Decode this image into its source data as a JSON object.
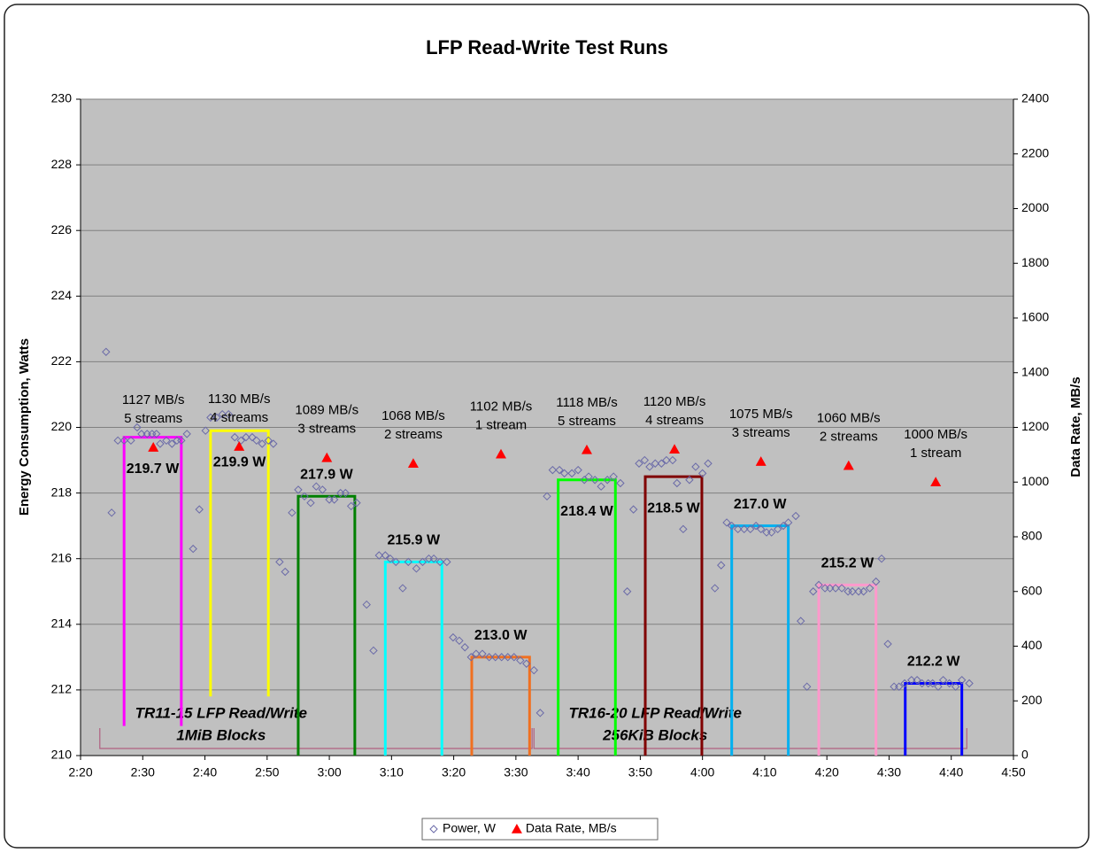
{
  "chart_data": {
    "type": "scatter",
    "title": "LFP Read-Write Test Runs",
    "y_label": "Energy Consumption, Watts",
    "y2_label": "Data Rate, MB/s",
    "xlim": [
      140,
      290
    ],
    "xticks": [
      {
        "value": 140,
        "label": "2:20"
      },
      {
        "value": 150,
        "label": "2:30"
      },
      {
        "value": 160,
        "label": "2:40"
      },
      {
        "value": 170,
        "label": "2:50"
      },
      {
        "value": 180,
        "label": "3:00"
      },
      {
        "value": 190,
        "label": "3:10"
      },
      {
        "value": 200,
        "label": "3:20"
      },
      {
        "value": 210,
        "label": "3:30"
      },
      {
        "value": 220,
        "label": "3:40"
      },
      {
        "value": 230,
        "label": "3:50"
      },
      {
        "value": 240,
        "label": "4:00"
      },
      {
        "value": 250,
        "label": "4:10"
      },
      {
        "value": 260,
        "label": "4:20"
      },
      {
        "value": 270,
        "label": "4:30"
      },
      {
        "value": 280,
        "label": "4:40"
      },
      {
        "value": 290,
        "label": "4:50"
      }
    ],
    "ylim": [
      210,
      230
    ],
    "yticks": [
      210,
      212,
      214,
      216,
      218,
      220,
      222,
      224,
      226,
      228,
      230
    ],
    "y2lim": [
      0,
      2400
    ],
    "y2ticks": [
      0,
      200,
      400,
      600,
      800,
      1000,
      1200,
      1400,
      1600,
      1800,
      2000,
      2200,
      2400
    ],
    "grid": true,
    "legend": "bottom",
    "series": [
      {
        "name": "Power, W",
        "color": "#6a6aa8",
        "marker": "diamond",
        "x": [
          144.1,
          145.0,
          146.0,
          147.0,
          148.1,
          149.1,
          149.8,
          150.7,
          151.5,
          152.2,
          152.8,
          153.8,
          154.7,
          155.5,
          156.2,
          157.1,
          158.1,
          159.1,
          160.1,
          160.9,
          161.9,
          162.8,
          163.8,
          164.8,
          165.8,
          166.6,
          167.6,
          168.3,
          169.2,
          170.2,
          171.0,
          172.0,
          172.9,
          174.0,
          175.0,
          176.0,
          177.0,
          177.9,
          178.9,
          180.0,
          180.8,
          181.8,
          182.6,
          183.5,
          184.4,
          186.0,
          187.1,
          188.0,
          189.0,
          189.8,
          190.7,
          191.8,
          192.7,
          194.0,
          195.0,
          196.0,
          196.8,
          197.8,
          198.9,
          199.9,
          200.9,
          201.8,
          202.8,
          203.6,
          204.6,
          205.7,
          206.7,
          207.7,
          208.7,
          209.7,
          210.7,
          211.7,
          212.9,
          213.9,
          215.0,
          215.9,
          217.0,
          217.8,
          219.0,
          220.0,
          221.0,
          221.7,
          222.7,
          223.7,
          224.7,
          225.7,
          226.8,
          227.9,
          228.9,
          229.8,
          230.7,
          231.5,
          232.4,
          233.4,
          234.2,
          235.2,
          235.9,
          236.9,
          237.9,
          238.9,
          240.0,
          240.9,
          242.0,
          243.0,
          243.9,
          244.7,
          245.7,
          246.7,
          247.7,
          248.6,
          249.4,
          250.3,
          251.1,
          252.1,
          253.0,
          253.8,
          255.0,
          255.8,
          256.8,
          257.8,
          258.7,
          259.7,
          260.5,
          261.4,
          262.4,
          263.4,
          264.1,
          265.1,
          265.9,
          266.9,
          267.9,
          268.8,
          269.8,
          270.8,
          271.6,
          272.5,
          273.6,
          274.5,
          275.3,
          276.3,
          277.0,
          277.9,
          278.7,
          279.7,
          280.7,
          281.7,
          282.9
        ],
        "values": [
          222.3,
          217.4,
          219.6,
          219.6,
          219.6,
          220.0,
          219.8,
          219.8,
          219.8,
          219.8,
          219.5,
          219.6,
          219.5,
          219.6,
          219.6,
          219.8,
          216.3,
          217.5,
          219.9,
          220.3,
          220.3,
          220.4,
          220.4,
          219.7,
          219.6,
          219.7,
          219.7,
          219.6,
          219.5,
          219.6,
          219.5,
          215.9,
          215.6,
          217.4,
          218.1,
          217.9,
          217.7,
          218.2,
          218.1,
          217.8,
          217.8,
          218.0,
          218.0,
          217.6,
          217.7,
          214.6,
          213.2,
          216.1,
          216.1,
          216.0,
          215.9,
          215.1,
          215.9,
          215.7,
          215.9,
          216.0,
          216.0,
          215.9,
          215.9,
          213.6,
          213.5,
          213.3,
          213.0,
          213.1,
          213.1,
          213.0,
          213.0,
          213.0,
          213.0,
          213.0,
          212.9,
          212.8,
          212.6,
          211.3,
          217.9,
          218.7,
          218.7,
          218.6,
          218.6,
          218.7,
          218.4,
          218.5,
          218.4,
          218.2,
          218.4,
          218.5,
          218.3,
          215.0,
          217.5,
          218.9,
          219.0,
          218.8,
          218.9,
          218.9,
          219.0,
          219.0,
          218.3,
          216.9,
          218.4,
          218.8,
          218.6,
          218.9,
          215.1,
          215.8,
          217.1,
          217.0,
          216.9,
          216.9,
          216.9,
          217.0,
          216.9,
          216.8,
          216.8,
          216.9,
          217.0,
          217.1,
          217.3,
          214.1,
          212.1,
          215.0,
          215.2,
          215.1,
          215.1,
          215.1,
          215.1,
          215.0,
          215.0,
          215.0,
          215.0,
          215.1,
          215.3,
          216.0,
          213.4,
          212.1,
          212.1,
          212.2,
          212.3,
          212.3,
          212.2,
          212.2,
          212.2,
          212.1,
          212.3,
          212.2,
          212.1,
          212.3,
          212.2
        ]
      },
      {
        "name": "Data Rate, MB/s",
        "color": "#ff0000",
        "marker": "triangle",
        "axis": "y2",
        "x": [
          151.7,
          165.5,
          179.6,
          193.5,
          207.6,
          221.4,
          235.5,
          249.4,
          263.5,
          277.5
        ],
        "values": [
          1127,
          1130,
          1089,
          1068,
          1102,
          1118,
          1120,
          1075,
          1060,
          1000
        ],
        "value_labels": [
          "1127 MB/s",
          "1130 MB/s",
          "1089 MB/s",
          "1068 MB/s",
          "1102 MB/s",
          "1118 MB/s",
          "1120 MB/s",
          "1075 MB/s",
          "1060 MB/s",
          "1000 MB/s"
        ],
        "notes": [
          "5 streams",
          "4 streams",
          "3 streams",
          "2 streams",
          "1 stream",
          "5 streams",
          "4 streams",
          "3 streams",
          "2 streams",
          "1 stream"
        ]
      }
    ],
    "runs": [
      {
        "label": "219.7 W",
        "value": 219.7,
        "start": 147.0,
        "end": 156.2,
        "bottom": 210.9,
        "color": "#ff00ff",
        "label_pos": "below"
      },
      {
        "label": "219.9 W",
        "value": 219.9,
        "start": 160.9,
        "end": 170.2,
        "bottom": 211.8,
        "color": "#ffff00",
        "label_pos": "below"
      },
      {
        "label": "217.9 W",
        "value": 217.9,
        "start": 175.0,
        "end": 184.1,
        "bottom": 210,
        "color": "#008000",
        "label_pos": "above"
      },
      {
        "label": "215.9 W",
        "value": 215.9,
        "start": 189.0,
        "end": 198.1,
        "bottom": 210,
        "color": "#00ffff",
        "label_pos": "above"
      },
      {
        "label": "213.0 W",
        "value": 213.0,
        "start": 202.9,
        "end": 212.2,
        "bottom": 210,
        "color": "#f07020",
        "label_pos": "above"
      },
      {
        "label": "218.4 W",
        "value": 218.4,
        "start": 216.8,
        "end": 226.0,
        "bottom": 210,
        "color": "#00ff00",
        "label_pos": "below"
      },
      {
        "label": "218.5 W",
        "value": 218.5,
        "start": 230.8,
        "end": 239.9,
        "bottom": 210,
        "color": "#800000",
        "label_pos": "below"
      },
      {
        "label": "217.0 W",
        "value": 217.0,
        "start": 244.7,
        "end": 253.8,
        "bottom": 210,
        "color": "#00b0f0",
        "label_pos": "above"
      },
      {
        "label": "215.2 W",
        "value": 215.2,
        "start": 258.7,
        "end": 267.9,
        "bottom": 210,
        "color": "#ff99cc",
        "label_pos": "above"
      },
      {
        "label": "212.2 W",
        "value": 212.2,
        "start": 272.6,
        "end": 281.7,
        "bottom": 210,
        "color": "#0000ff",
        "label_pos": "above"
      }
    ],
    "groups": [
      {
        "lines": [
          "TR11-15 LFP Read/Write",
          "1MiB Blocks"
        ],
        "start": 143.1,
        "end": 212.6
      },
      {
        "lines": [
          "TR16-20 LFP Read/Write",
          "256KiB Blocks"
        ],
        "start": 212.9,
        "end": 282.5
      }
    ]
  }
}
